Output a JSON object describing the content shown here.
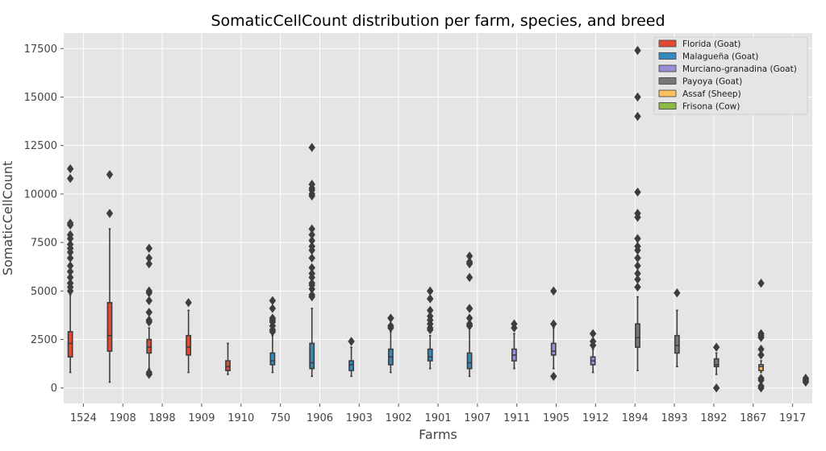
{
  "chart_data": {
    "type": "box",
    "title": "SomaticCellCount distribution per farm, species, and breed",
    "xlabel": "Farms",
    "ylabel": "SomaticCellCount",
    "ylim": [
      -800,
      18300
    ],
    "yticks": [
      0,
      2500,
      5000,
      7500,
      10000,
      12500,
      15000,
      17500
    ],
    "grid": true,
    "legend_position": "top-right",
    "legend": [
      {
        "name": "Florida (Goat)",
        "color": "#E24A33"
      },
      {
        "name": "Malagueña (Goat)",
        "color": "#348ABD"
      },
      {
        "name": "Murciano-granadina (Goat)",
        "color": "#988ED5"
      },
      {
        "name": "Payoya (Goat)",
        "color": "#777777"
      },
      {
        "name": "Assaf (Sheep)",
        "color": "#FBC15E"
      },
      {
        "name": "Frisona (Cow)",
        "color": "#8EBA42"
      }
    ],
    "categories": [
      "1524",
      "1908",
      "1898",
      "1909",
      "1910",
      "750",
      "1906",
      "1903",
      "1902",
      "1901",
      "1907",
      "1911",
      "1905",
      "1912",
      "1894",
      "1893",
      "1892",
      "1867",
      "1917"
    ],
    "boxes": [
      {
        "farm": "1524",
        "breed": 0,
        "whisker_low": 800,
        "q1": 1600,
        "median": 2300,
        "q3": 2900,
        "whisker_high": 4800,
        "outliers": [
          5000,
          5200,
          5400,
          5700,
          6000,
          6300,
          6700,
          7000,
          7200,
          7400,
          7700,
          7900,
          8400,
          8500,
          10800,
          11300
        ]
      },
      {
        "farm": "1908",
        "breed": 0,
        "whisker_low": 300,
        "q1": 1900,
        "median": 2700,
        "q3": 4400,
        "whisker_high": 8200,
        "outliers": [
          9000,
          11000
        ]
      },
      {
        "farm": "1898",
        "breed": 0,
        "whisker_low": 1000,
        "q1": 1800,
        "median": 2100,
        "q3": 2500,
        "whisker_high": 3100,
        "outliers": [
          700,
          800,
          3400,
          3500,
          3900,
          4500,
          4900,
          5000,
          6400,
          6700,
          7200
        ]
      },
      {
        "farm": "1909",
        "breed": 0,
        "whisker_low": 800,
        "q1": 1700,
        "median": 2100,
        "q3": 2700,
        "whisker_high": 4000,
        "outliers": [
          4400
        ]
      },
      {
        "farm": "1910",
        "breed": 0,
        "whisker_low": 700,
        "q1": 900,
        "median": 1100,
        "q3": 1400,
        "whisker_high": 2300,
        "outliers": []
      },
      {
        "farm": "750",
        "breed": 1,
        "whisker_low": 800,
        "q1": 1200,
        "median": 1400,
        "q3": 1800,
        "whisker_high": 2700,
        "outliers": [
          2900,
          3000,
          3200,
          3400,
          3500,
          3600,
          4100,
          4500
        ]
      },
      {
        "farm": "1906",
        "breed": 1,
        "whisker_low": 600,
        "q1": 1000,
        "median": 1300,
        "q3": 2300,
        "whisker_high": 4100,
        "outliers": [
          4700,
          4800,
          5100,
          5300,
          5400,
          5700,
          5900,
          6200,
          6700,
          7100,
          7300,
          7600,
          7900,
          8200,
          9900,
          10000,
          10200,
          10300,
          10500,
          12400
        ]
      },
      {
        "farm": "1903",
        "breed": 1,
        "whisker_low": 600,
        "q1": 900,
        "median": 1200,
        "q3": 1400,
        "whisker_high": 2100,
        "outliers": [
          2400
        ]
      },
      {
        "farm": "1902",
        "breed": 1,
        "whisker_low": 800,
        "q1": 1200,
        "median": 1600,
        "q3": 2000,
        "whisker_high": 2900,
        "outliers": [
          3100,
          3200,
          3600
        ]
      },
      {
        "farm": "1901",
        "breed": 1,
        "whisker_low": 1000,
        "q1": 1400,
        "median": 1600,
        "q3": 2000,
        "whisker_high": 2700,
        "outliers": [
          3000,
          3100,
          3300,
          3500,
          3700,
          4000,
          4600,
          5000
        ]
      },
      {
        "farm": "1907",
        "breed": 1,
        "whisker_low": 600,
        "q1": 1000,
        "median": 1300,
        "q3": 1800,
        "whisker_high": 3100,
        "outliers": [
          3200,
          3300,
          3600,
          4100,
          4100,
          5700,
          6400,
          6500,
          6800
        ]
      },
      {
        "farm": "1911",
        "breed": 2,
        "whisker_low": 1000,
        "q1": 1400,
        "median": 1700,
        "q3": 2000,
        "whisker_high": 2800,
        "outliers": [
          3100,
          3300
        ]
      },
      {
        "farm": "1905",
        "breed": 2,
        "whisker_low": 1000,
        "q1": 1700,
        "median": 1900,
        "q3": 2300,
        "whisker_high": 3100,
        "outliers": [
          600,
          3300,
          5000
        ]
      },
      {
        "farm": "1912",
        "breed": 2,
        "whisker_low": 800,
        "q1": 1200,
        "median": 1400,
        "q3": 1600,
        "whisker_high": 2000,
        "outliers": [
          2200,
          2400,
          2800
        ]
      },
      {
        "farm": "1894",
        "breed": 3,
        "whisker_low": 900,
        "q1": 2100,
        "median": 2600,
        "q3": 3300,
        "whisker_high": 4700,
        "outliers": [
          5200,
          5600,
          5900,
          6300,
          6700,
          7100,
          7300,
          7700,
          8800,
          9000,
          10100,
          14000,
          15000,
          17400
        ]
      },
      {
        "farm": "1893",
        "breed": 3,
        "whisker_low": 1100,
        "q1": 1800,
        "median": 2200,
        "q3": 2700,
        "whisker_high": 4000,
        "outliers": [
          4900
        ]
      },
      {
        "farm": "1892",
        "breed": 3,
        "whisker_low": 700,
        "q1": 1100,
        "median": 1200,
        "q3": 1500,
        "whisker_high": 1800,
        "outliers": [
          0,
          2100
        ]
      },
      {
        "farm": "1867",
        "breed": 4,
        "whisker_low": 800,
        "q1": 900,
        "median": 1100,
        "q3": 1200,
        "whisker_high": 1400,
        "outliers": [
          0,
          100,
          400,
          500,
          1700,
          2000,
          2600,
          2700,
          2800,
          5400
        ]
      },
      {
        "farm": "1917",
        "breed": 5,
        "whisker_low": 300,
        "q1": 300,
        "median": 400,
        "q3": 500,
        "whisker_high": 500,
        "outliers": [
          300,
          400,
          500
        ]
      }
    ]
  }
}
